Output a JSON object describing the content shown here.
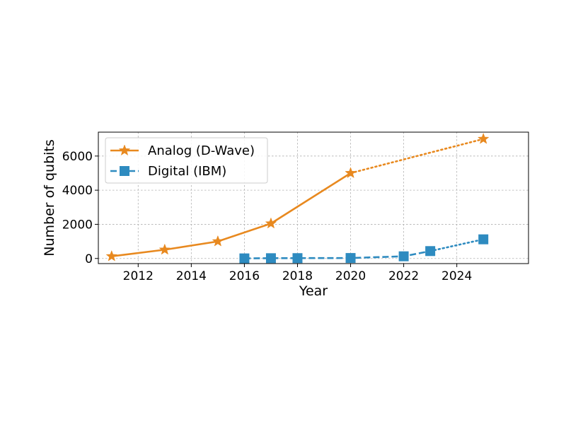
{
  "chart_data": {
    "type": "line",
    "xlabel": "Year",
    "ylabel": "Number of qubits",
    "xlim": [
      2010.5,
      2026.7
    ],
    "ylim": [
      -300,
      7400
    ],
    "x_ticks": [
      2012,
      2014,
      2016,
      2018,
      2020,
      2022,
      2024
    ],
    "y_ticks": [
      0,
      2000,
      4000,
      6000
    ],
    "grid": true,
    "legend_position": "upper-left",
    "series": [
      {
        "name": "Analog (D-Wave)",
        "color": "#e8891f",
        "marker": "star",
        "line_style": "solid",
        "points": [
          [
            2011,
            128
          ],
          [
            2013,
            512
          ],
          [
            2015,
            1000
          ],
          [
            2017,
            2048
          ],
          [
            2020,
            5000
          ]
        ],
        "projected_style": "dotted",
        "projected_points": [
          [
            2020,
            5000
          ],
          [
            2025,
            7000
          ]
        ]
      },
      {
        "name": "Digital (IBM)",
        "color": "#2e8bc0",
        "marker": "square",
        "line_style": "dashed",
        "points": [
          [
            2016,
            5
          ],
          [
            2017,
            16
          ],
          [
            2018,
            20
          ],
          [
            2020,
            27
          ],
          [
            2022,
            127
          ],
          [
            2023,
            433
          ]
        ],
        "projected_style": "dotted",
        "projected_points": [
          [
            2023,
            433
          ],
          [
            2025,
            1121
          ]
        ]
      }
    ]
  }
}
